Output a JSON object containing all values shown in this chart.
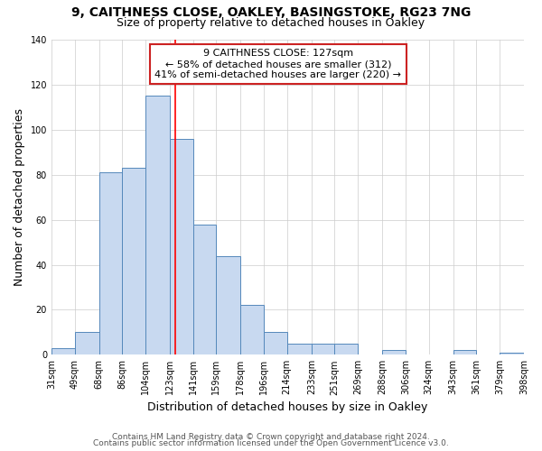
{
  "title1": "9, CAITHNESS CLOSE, OAKLEY, BASINGSTOKE, RG23 7NG",
  "title2": "Size of property relative to detached houses in Oakley",
  "xlabel": "Distribution of detached houses by size in Oakley",
  "ylabel": "Number of detached properties",
  "bin_edges": [
    31,
    49,
    68,
    86,
    104,
    123,
    141,
    159,
    178,
    196,
    214,
    233,
    251,
    269,
    288,
    306,
    324,
    343,
    361,
    379,
    398
  ],
  "bin_counts": [
    3,
    10,
    81,
    83,
    115,
    96,
    58,
    44,
    22,
    10,
    5,
    5,
    5,
    0,
    2,
    0,
    0,
    2,
    0,
    1
  ],
  "bar_color": "#c8d9f0",
  "bar_edge_color": "#5588bb",
  "vline_x": 127,
  "vline_color": "red",
  "annotation_line1": "9 CAITHNESS CLOSE: 127sqm",
  "annotation_line2": "← 58% of detached houses are smaller (312)",
  "annotation_line3": "41% of semi-detached houses are larger (220) →",
  "annotation_box_color": "white",
  "annotation_box_edge_color": "#cc2222",
  "ylim": [
    0,
    140
  ],
  "yticks": [
    0,
    20,
    40,
    60,
    80,
    100,
    120,
    140
  ],
  "tick_labels": [
    "31sqm",
    "49sqm",
    "68sqm",
    "86sqm",
    "104sqm",
    "123sqm",
    "141sqm",
    "159sqm",
    "178sqm",
    "196sqm",
    "214sqm",
    "233sqm",
    "251sqm",
    "269sqm",
    "288sqm",
    "306sqm",
    "324sqm",
    "343sqm",
    "361sqm",
    "379sqm",
    "398sqm"
  ],
  "footer1": "Contains HM Land Registry data © Crown copyright and database right 2024.",
  "footer2": "Contains public sector information licensed under the Open Government Licence v3.0.",
  "grid_color": "#cccccc",
  "title_fontsize": 10,
  "subtitle_fontsize": 9,
  "axis_label_fontsize": 9,
  "tick_fontsize": 7,
  "annotation_fontsize": 8,
  "footer_fontsize": 6.5
}
